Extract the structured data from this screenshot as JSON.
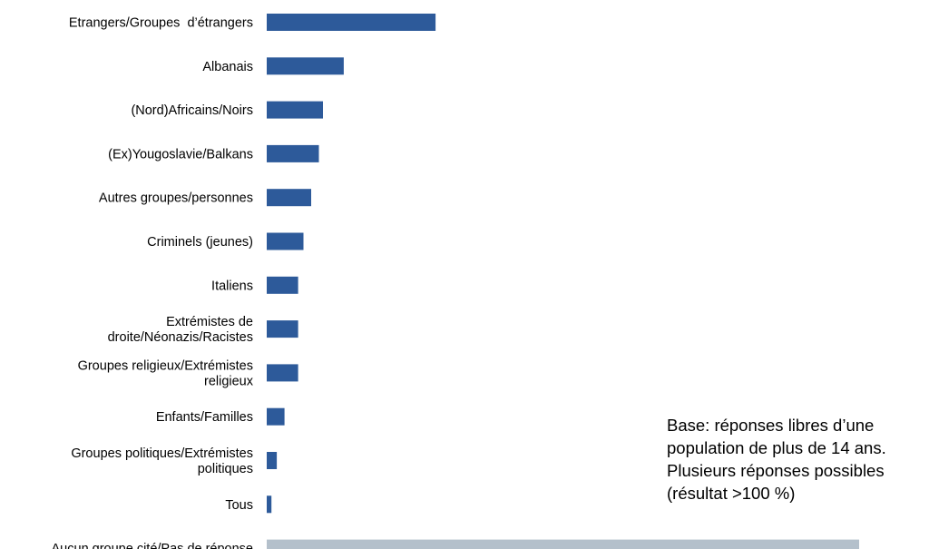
{
  "chart_data": {
    "type": "bar",
    "orientation": "horizontal",
    "categories": [
      [
        "Etrangers/Groupes  d’étrangers"
      ],
      [
        "Albanais"
      ],
      [
        "(Nord)Africains/Noirs"
      ],
      [
        "(Ex)Yougoslavie/Balkans"
      ],
      [
        "Autres groupes/personnes"
      ],
      [
        "Criminels (jeunes)"
      ],
      [
        "Italiens"
      ],
      [
        "Extrémistes de",
        "droite/Néonazis/Racistes"
      ],
      [
        "Groupes religieux/Extrémistes",
        "religieux"
      ],
      [
        "Enfants/Familles"
      ],
      [
        "Groupes politiques/Extrémistes",
        "politiques"
      ],
      [
        "Tous"
      ],
      [
        "Aucun groupe cité/Pas de réponse"
      ]
    ],
    "values": [
      28.5,
      13,
      9.5,
      8.8,
      7.5,
      6.2,
      5.3,
      5.3,
      5.3,
      3,
      1.7,
      0.8,
      100
    ],
    "xlim": [
      0,
      100
    ],
    "colors": {
      "default": "#2d5a9a",
      "no_answer": "#b4c0cb"
    },
    "grid": false,
    "legend": "none"
  },
  "note": {
    "lines": [
      "Base: réponses libres d’une",
      "population de plus de 14 ans.",
      "Plusieurs réponses possibles",
      "(résultat >100 %)"
    ]
  }
}
